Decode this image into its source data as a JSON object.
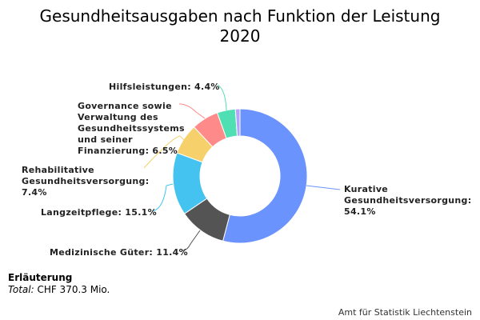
{
  "chart_data": {
    "type": "pie",
    "donut": true,
    "title": "Gesundheitsausgaben nach Funktion der Leistung",
    "subtitle": "2020",
    "unit": "%",
    "slices": [
      {
        "name": "Kurative Gesundheitsversorgung",
        "value": 54.1,
        "label": "Kurative\nGesundheitsversorgung:\n54.1%",
        "color": "#6b93fd"
      },
      {
        "name": "Medizinische Güter",
        "value": 11.4,
        "label": "Medizinische Güter: 11.4%",
        "color": "#545454"
      },
      {
        "name": "Langzeitpflege",
        "value": 15.1,
        "label": "Langzeitpflege: 15.1%",
        "color": "#45c3f0"
      },
      {
        "name": "Rehabilitative Gesundheitsversorgung",
        "value": 7.4,
        "label": "Rehabilitative\nGesundheitsversorgung:\n7.4%",
        "color": "#f5d06b"
      },
      {
        "name": "Governance sowie Verwaltung des Gesundheitssystems und seiner Finanzierung",
        "value": 6.5,
        "label": "Governance sowie\nVerwaltung des\nGesundheitssystems\nund seiner\nFinanzierung: 6.5%",
        "color": "#ff8a8a"
      },
      {
        "name": "Hilfsleistungen",
        "value": 4.4,
        "label": "Hilfsleistungen: 4.4%",
        "color": "#4fdfb2"
      },
      {
        "name": "",
        "value": 1.1,
        "label": "",
        "color": "#b3a3ff"
      }
    ]
  },
  "note": {
    "heading": "Erläuterung",
    "total_label": "Total:",
    "total_value": " CHF 370.3 Mio."
  },
  "credit": "Amt für Statistik Liechtenstein"
}
